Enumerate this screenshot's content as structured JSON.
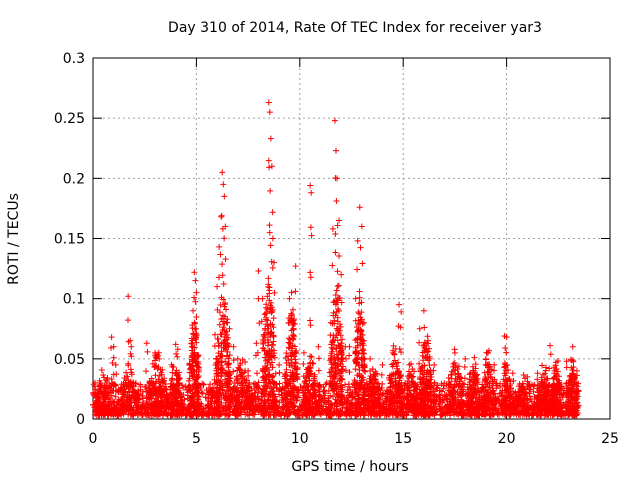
{
  "chart_data": {
    "type": "scatter",
    "title": "Day 310 of 2014, Rate Of TEC Index for receiver yar3",
    "xlabel": "GPS time / hours",
    "ylabel": "ROTI / TECUs",
    "xlim": [
      0,
      25
    ],
    "ylim": [
      0,
      0.3
    ],
    "x_ticks": [
      0,
      5,
      10,
      15,
      20,
      25
    ],
    "x_tick_labels": [
      "0",
      "5",
      "10",
      "15",
      "20",
      "25"
    ],
    "y_ticks": [
      0,
      0.05,
      0.1,
      0.15,
      0.2,
      0.25,
      0.3
    ],
    "y_tick_labels": [
      "0",
      "0.05",
      "0.1",
      "0.15",
      "0.2",
      "0.25",
      "0.3"
    ],
    "grid": true,
    "marker": "plus",
    "color": "#ff0000",
    "x_extent": [
      0,
      23.5
    ],
    "baseline_range": [
      0.003,
      0.03
    ],
    "series": [
      {
        "name": "yar3",
        "points": [
          [
            0.1,
            0.03
          ],
          [
            0.3,
            0.025
          ],
          [
            0.5,
            0.02
          ],
          [
            0.9,
            0.068
          ],
          [
            1.0,
            0.06
          ],
          [
            1.1,
            0.045
          ],
          [
            1.7,
            0.102
          ],
          [
            1.8,
            0.065
          ],
          [
            1.85,
            0.06
          ],
          [
            2.6,
            0.063
          ],
          [
            3.0,
            0.055
          ],
          [
            3.2,
            0.05
          ],
          [
            3.8,
            0.045
          ],
          [
            4.0,
            0.062
          ],
          [
            4.1,
            0.058
          ],
          [
            4.8,
            0.078
          ],
          [
            4.9,
            0.122
          ],
          [
            4.95,
            0.115
          ],
          [
            5.0,
            0.105
          ],
          [
            5.9,
            0.07
          ],
          [
            6.0,
            0.11
          ],
          [
            6.1,
            0.143
          ],
          [
            6.2,
            0.168
          ],
          [
            6.25,
            0.205
          ],
          [
            6.3,
            0.195
          ],
          [
            6.35,
            0.185
          ],
          [
            6.4,
            0.16
          ],
          [
            6.5,
            0.08
          ],
          [
            6.6,
            0.075
          ],
          [
            6.8,
            0.06
          ],
          [
            7.0,
            0.05
          ],
          [
            7.5,
            0.04
          ],
          [
            7.9,
            0.063
          ],
          [
            8.0,
            0.123
          ],
          [
            8.2,
            0.1
          ],
          [
            8.3,
            0.087
          ],
          [
            8.5,
            0.263
          ],
          [
            8.55,
            0.255
          ],
          [
            8.6,
            0.233
          ],
          [
            8.65,
            0.21
          ],
          [
            8.7,
            0.15
          ],
          [
            8.75,
            0.13
          ],
          [
            9.0,
            0.045
          ],
          [
            9.5,
            0.1
          ],
          [
            9.6,
            0.105
          ],
          [
            9.7,
            0.082
          ],
          [
            9.8,
            0.127
          ],
          [
            10.2,
            0.055
          ],
          [
            10.5,
            0.194
          ],
          [
            10.55,
            0.188
          ],
          [
            10.9,
            0.06
          ],
          [
            11.5,
            0.08
          ],
          [
            11.6,
            0.158
          ],
          [
            11.7,
            0.248
          ],
          [
            11.75,
            0.223
          ],
          [
            11.8,
            0.2
          ],
          [
            11.9,
            0.165
          ],
          [
            12.0,
            0.12
          ],
          [
            12.2,
            0.06
          ],
          [
            12.4,
            0.06
          ],
          [
            12.7,
            0.1
          ],
          [
            12.8,
            0.148
          ],
          [
            12.9,
            0.176
          ],
          [
            13.0,
            0.16
          ],
          [
            13.1,
            0.08
          ],
          [
            13.4,
            0.05
          ],
          [
            14.0,
            0.045
          ],
          [
            14.5,
            0.055
          ],
          [
            14.8,
            0.095
          ],
          [
            14.9,
            0.089
          ],
          [
            15.3,
            0.045
          ],
          [
            15.8,
            0.075
          ],
          [
            16.0,
            0.09
          ],
          [
            16.2,
            0.065
          ],
          [
            16.5,
            0.045
          ],
          [
            17.5,
            0.055
          ],
          [
            18.0,
            0.05
          ],
          [
            18.5,
            0.042
          ],
          [
            19.1,
            0.055
          ],
          [
            19.4,
            0.045
          ],
          [
            19.9,
            0.069
          ],
          [
            20.0,
            0.068
          ],
          [
            20.3,
            0.038
          ],
          [
            21.0,
            0.035
          ],
          [
            21.5,
            0.038
          ],
          [
            22.1,
            0.061
          ],
          [
            22.3,
            0.043
          ],
          [
            22.9,
            0.048
          ],
          [
            23.2,
            0.06
          ],
          [
            23.4,
            0.04
          ]
        ]
      }
    ],
    "bursts": [
      {
        "center": 0.5,
        "width": 0.6,
        "peak": 0.035
      },
      {
        "center": 1.8,
        "width": 0.7,
        "peak": 0.04
      },
      {
        "center": 3.1,
        "width": 0.7,
        "peak": 0.05
      },
      {
        "center": 4.0,
        "width": 0.5,
        "peak": 0.045
      },
      {
        "center": 4.9,
        "width": 0.4,
        "peak": 0.09
      },
      {
        "center": 6.3,
        "width": 0.6,
        "peak": 0.1
      },
      {
        "center": 7.2,
        "width": 0.6,
        "peak": 0.05
      },
      {
        "center": 8.5,
        "width": 0.5,
        "peak": 0.12
      },
      {
        "center": 9.6,
        "width": 0.5,
        "peak": 0.09
      },
      {
        "center": 10.5,
        "width": 0.5,
        "peak": 0.05
      },
      {
        "center": 11.8,
        "width": 0.5,
        "peak": 0.12
      },
      {
        "center": 12.9,
        "width": 0.4,
        "peak": 0.1
      },
      {
        "center": 13.6,
        "width": 0.5,
        "peak": 0.04
      },
      {
        "center": 14.6,
        "width": 0.5,
        "peak": 0.06
      },
      {
        "center": 15.4,
        "width": 0.5,
        "peak": 0.04
      },
      {
        "center": 16.1,
        "width": 0.5,
        "peak": 0.07
      },
      {
        "center": 17.5,
        "width": 0.7,
        "peak": 0.05
      },
      {
        "center": 18.4,
        "width": 0.5,
        "peak": 0.045
      },
      {
        "center": 19.1,
        "width": 0.5,
        "peak": 0.05
      },
      {
        "center": 20.0,
        "width": 0.4,
        "peak": 0.045
      },
      {
        "center": 20.8,
        "width": 0.6,
        "peak": 0.03
      },
      {
        "center": 21.8,
        "width": 0.5,
        "peak": 0.04
      },
      {
        "center": 22.4,
        "width": 0.4,
        "peak": 0.045
      },
      {
        "center": 23.2,
        "width": 0.4,
        "peak": 0.05
      }
    ]
  }
}
